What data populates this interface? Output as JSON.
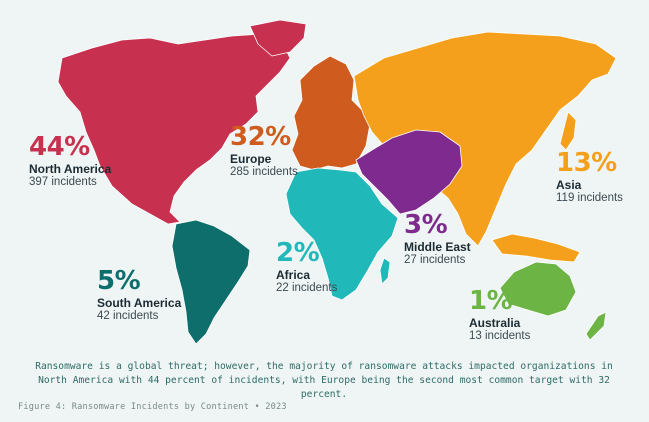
{
  "colors": {
    "background": "#eef5f4",
    "north_america": "#c8304f",
    "europe": "#cf5b1e",
    "asia": "#f4a01c",
    "middle_east": "#7f2a8e",
    "africa": "#20b8b8",
    "south_america": "#0d6e6c",
    "australia": "#6cb443"
  },
  "regions": {
    "north_america": {
      "percent": "44%",
      "name": "North America",
      "count": "397 incidents"
    },
    "europe": {
      "percent": "32%",
      "name": "Europe",
      "count": "285 incidents"
    },
    "asia": {
      "percent": "13%",
      "name": "Asia",
      "count": "119 incidents"
    },
    "middle_east": {
      "percent": "3%",
      "name": "Middle East",
      "count": "27 incidents"
    },
    "africa": {
      "percent": "2%",
      "name": "Africa",
      "count": "22 incidents"
    },
    "south_america": {
      "percent": "5%",
      "name": "South America",
      "count": "42 incidents"
    },
    "australia": {
      "percent": "1%",
      "name": "Australia",
      "count": "13 incidents"
    }
  },
  "caption": "Ransomware is a global threat; however, the majority of ransomware attacks impacted organizations in North America with 44 percent of incidents, with Europe being the second most common target with 32 percent.",
  "figure_label": "Figure 4: Ransomware Incidents by Continent • 2023"
}
